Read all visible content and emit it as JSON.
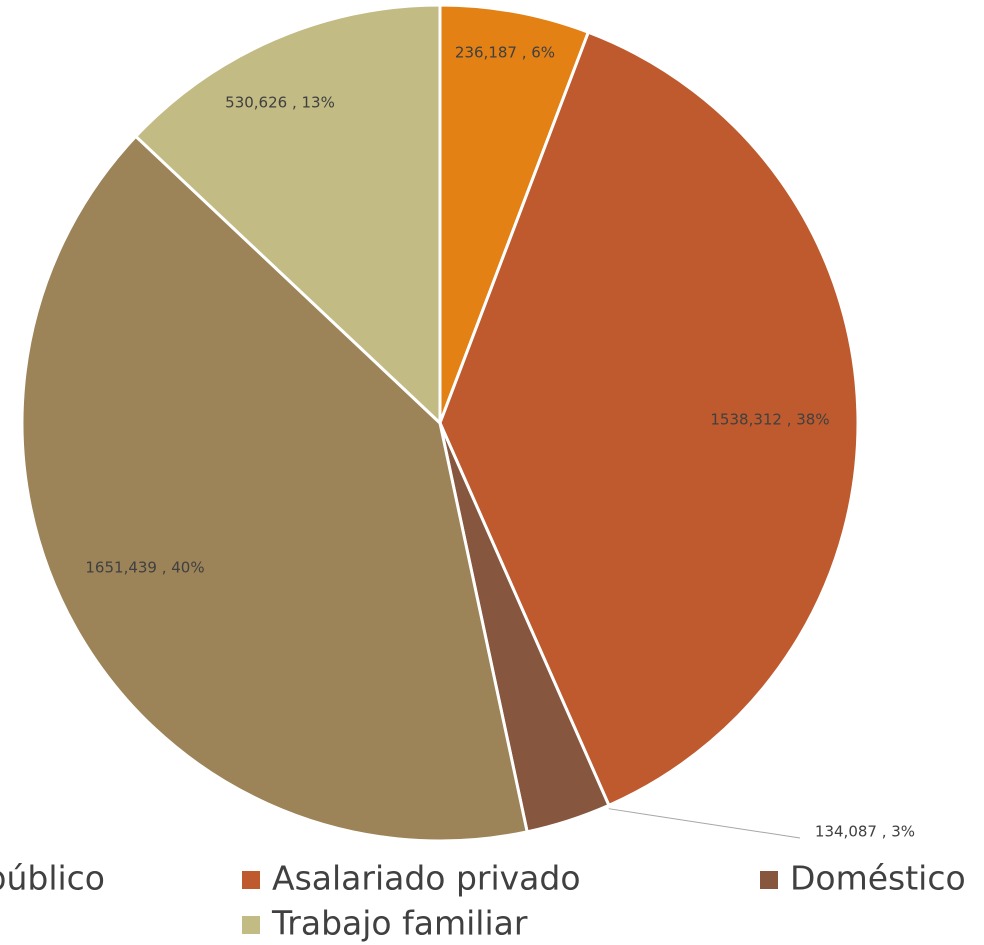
{
  "chart_data": {
    "type": "pie",
    "categories": [
      "Asalariado público",
      "Asalariado privado",
      "Doméstico",
      null,
      "Trabajo familiar"
    ],
    "values": [
      236187,
      1538312,
      134087,
      1651439,
      530626
    ],
    "value_labels": [
      "236,187 , 6%",
      "1538,312 , 38%",
      "134,087 , 3%",
      "1651,439 , 40%",
      "530,626 , 13%"
    ],
    "colors": [
      "#e38114",
      "#be5a2e",
      "#87563f",
      "#9c8358",
      "#c2bb84"
    ],
    "legend": "bottom"
  }
}
